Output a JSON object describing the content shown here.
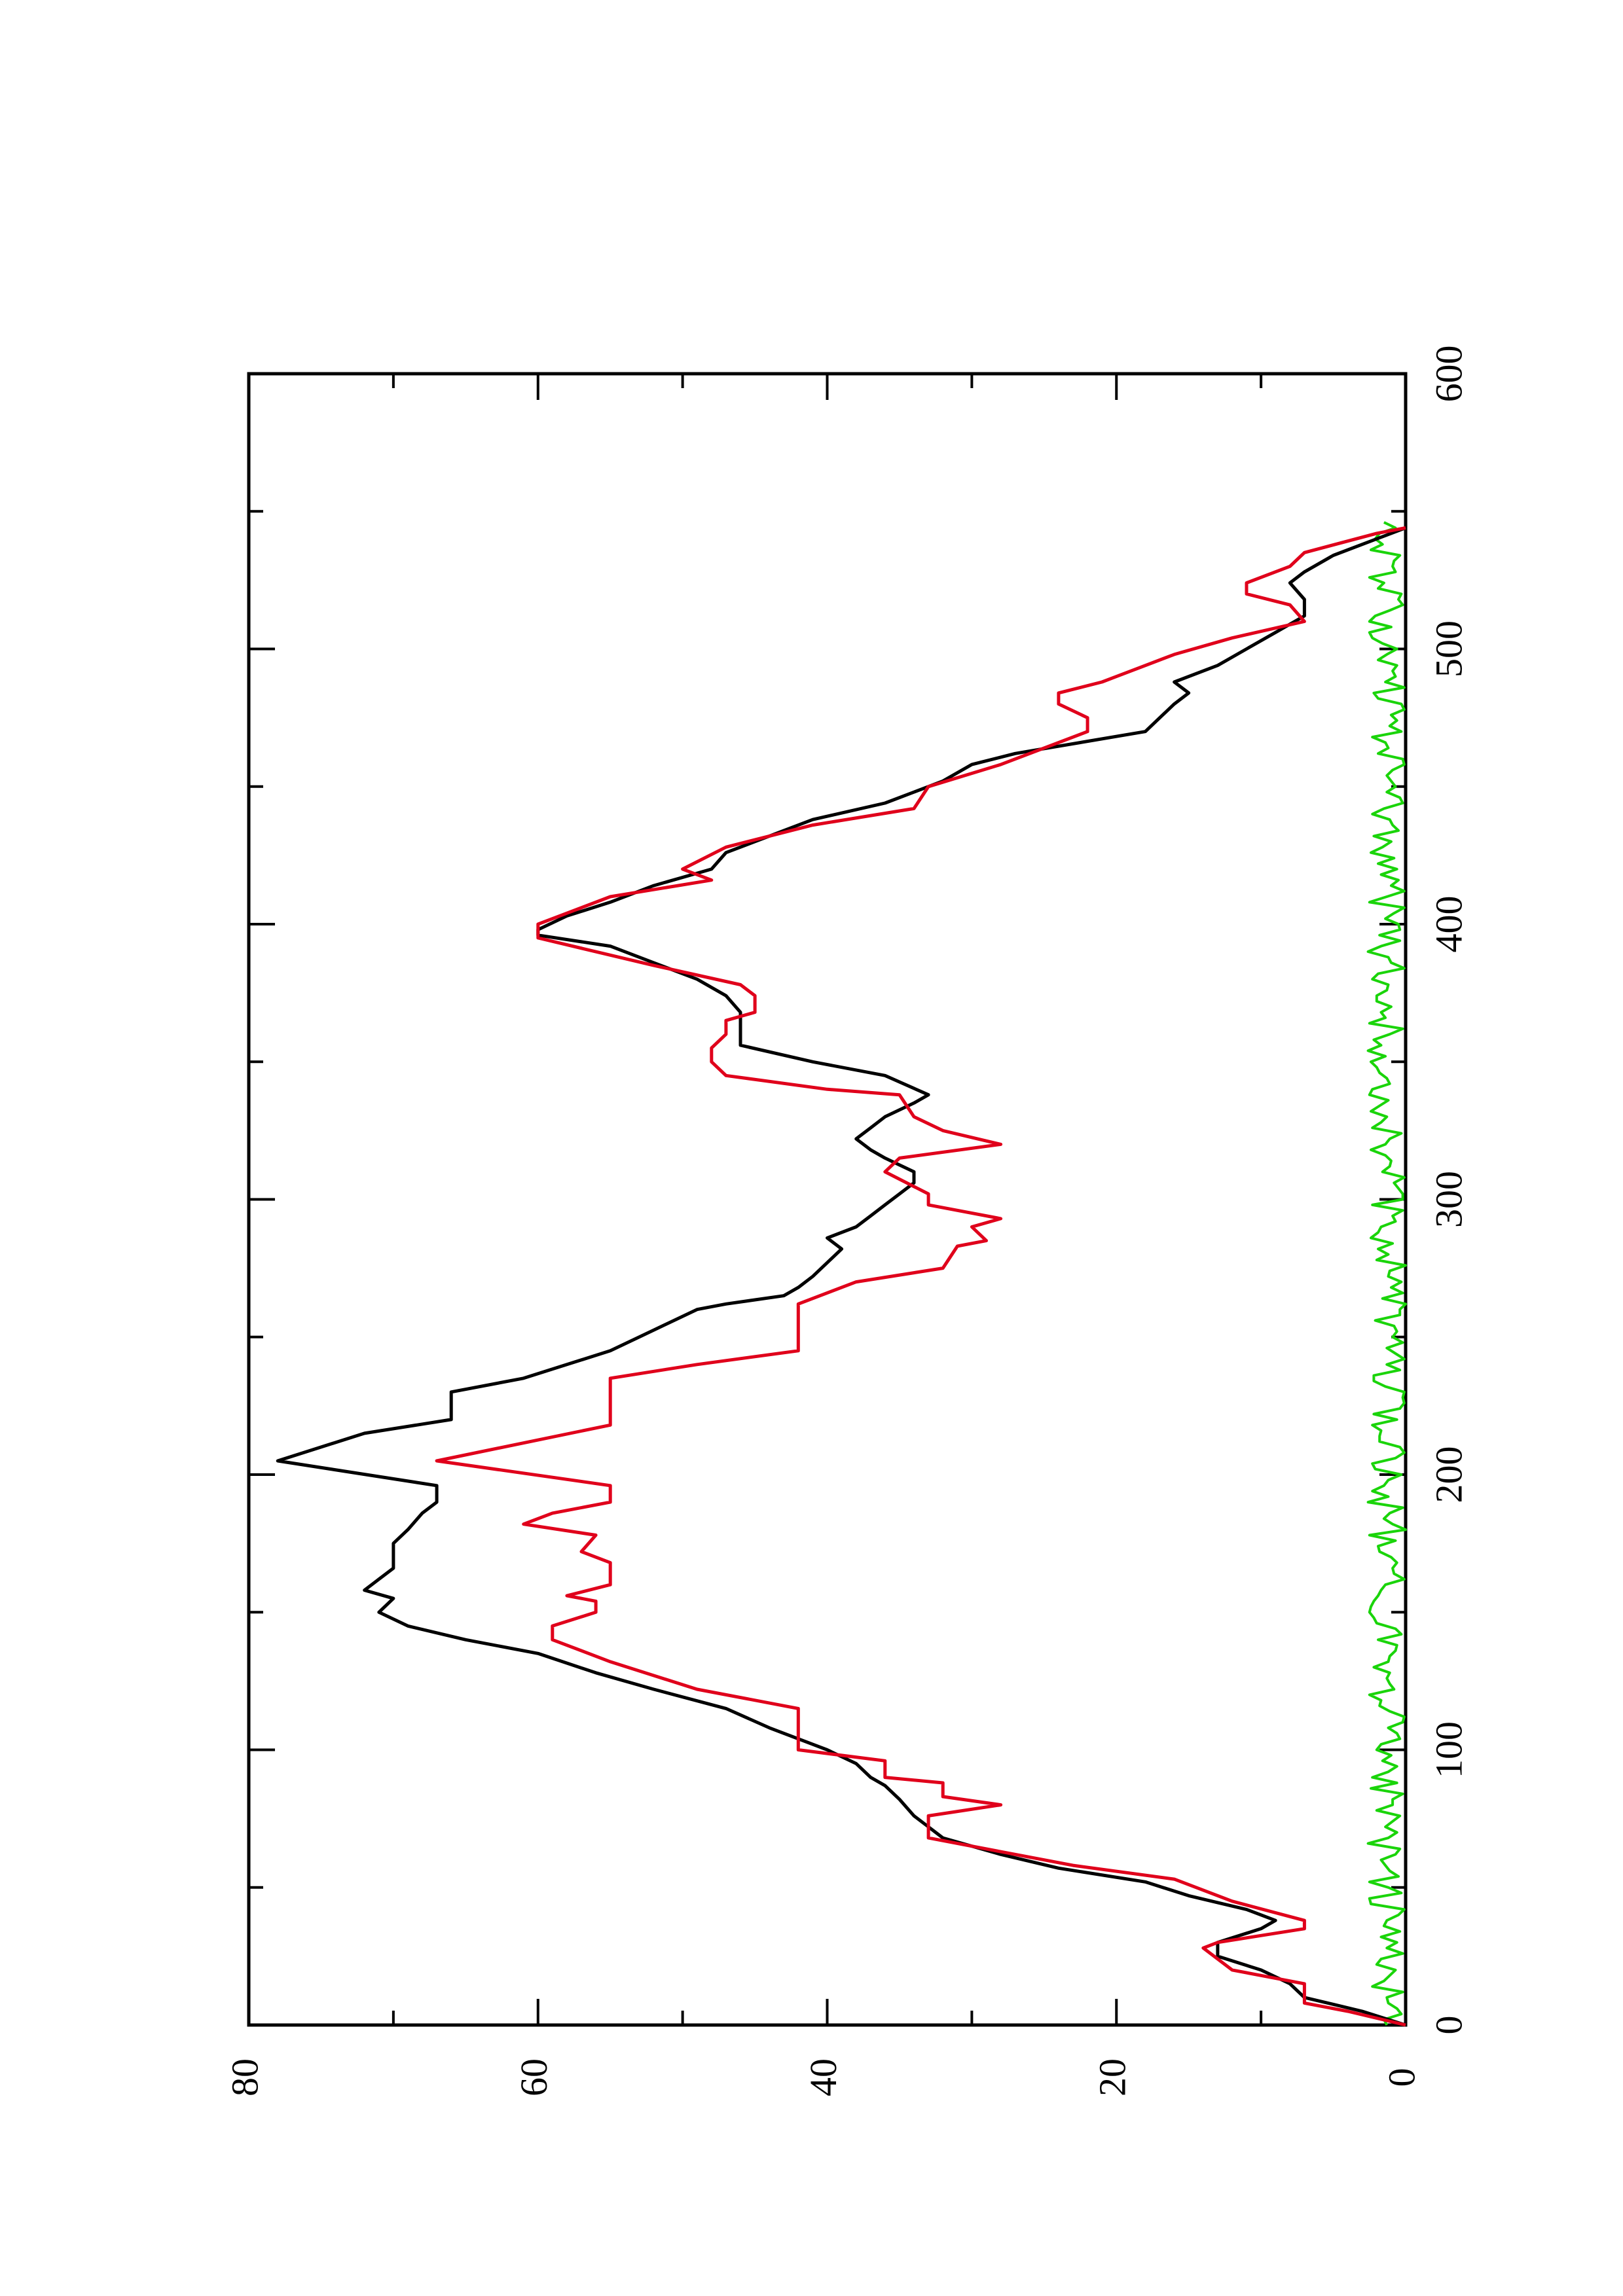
{
  "chart_data": {
    "type": "line",
    "orientation": "rotated-90-ccw",
    "title": "",
    "xlabel": "",
    "ylabel": "",
    "xlim": [
      0,
      600
    ],
    "ylim": [
      0,
      80
    ],
    "grid": false,
    "legend": "none",
    "x_ticks": [
      0,
      100,
      200,
      300,
      400,
      500,
      600
    ],
    "x_tick_labels": [
      "0",
      "100",
      "200",
      "300",
      "400",
      "500",
      "600"
    ],
    "x_minor_ticks": [
      50,
      150,
      250,
      350,
      450,
      550
    ],
    "y_ticks": [
      0,
      20,
      40,
      60,
      80
    ],
    "y_tick_labels": [
      "0",
      "20",
      "40",
      "60",
      "80"
    ],
    "y_minor_ticks": [
      10,
      30,
      50,
      70
    ],
    "series": [
      {
        "color": "#000000",
        "points": [
          [
            0,
            0
          ],
          [
            5,
            3
          ],
          [
            10,
            7
          ],
          [
            15,
            8
          ],
          [
            20,
            10
          ],
          [
            25,
            13
          ],
          [
            30,
            13
          ],
          [
            35,
            10
          ],
          [
            38,
            9
          ],
          [
            42,
            11
          ],
          [
            47,
            15
          ],
          [
            52,
            18
          ],
          [
            57,
            24
          ],
          [
            62,
            28
          ],
          [
            68,
            32
          ],
          [
            72,
            33
          ],
          [
            76,
            34
          ],
          [
            82,
            35
          ],
          [
            87,
            36
          ],
          [
            90,
            37
          ],
          [
            95,
            38
          ],
          [
            100,
            40
          ],
          [
            108,
            44
          ],
          [
            115,
            47
          ],
          [
            122,
            52
          ],
          [
            128,
            56
          ],
          [
            135,
            60
          ],
          [
            140,
            65
          ],
          [
            145,
            69
          ],
          [
            150,
            71
          ],
          [
            155,
            70
          ],
          [
            158,
            72
          ],
          [
            162,
            71
          ],
          [
            166,
            70
          ],
          [
            170,
            70
          ],
          [
            175,
            70
          ],
          [
            180,
            69
          ],
          [
            186,
            68
          ],
          [
            190,
            67
          ],
          [
            196,
            67
          ],
          [
            205,
            78
          ],
          [
            215,
            72
          ],
          [
            220,
            66
          ],
          [
            225,
            66
          ],
          [
            230,
            66
          ],
          [
            235,
            61
          ],
          [
            240,
            58
          ],
          [
            245,
            55
          ],
          [
            250,
            53
          ],
          [
            255,
            51
          ],
          [
            260,
            49
          ],
          [
            262,
            47
          ],
          [
            265,
            43
          ],
          [
            268,
            42
          ],
          [
            272,
            41
          ],
          [
            277,
            40
          ],
          [
            282,
            39
          ],
          [
            286,
            40
          ],
          [
            290,
            38
          ],
          [
            294,
            37
          ],
          [
            298,
            36
          ],
          [
            302,
            35
          ],
          [
            306,
            34
          ],
          [
            310,
            34
          ],
          [
            315,
            36
          ],
          [
            318,
            37
          ],
          [
            322,
            38
          ],
          [
            326,
            37
          ],
          [
            330,
            36
          ],
          [
            335,
            34
          ],
          [
            338,
            33
          ],
          [
            345,
            36
          ],
          [
            350,
            41
          ],
          [
            356,
            46
          ],
          [
            362,
            46
          ],
          [
            368,
            46
          ],
          [
            374,
            47
          ],
          [
            380,
            49
          ],
          [
            386,
            52
          ],
          [
            392,
            55
          ],
          [
            396,
            60
          ],
          [
            398,
            60
          ],
          [
            403,
            58
          ],
          [
            408,
            55
          ],
          [
            414,
            52
          ],
          [
            420,
            48
          ],
          [
            426,
            47
          ],
          [
            432,
            44
          ],
          [
            438,
            41
          ],
          [
            444,
            36
          ],
          [
            448,
            34
          ],
          [
            452,
            32
          ],
          [
            458,
            30
          ],
          [
            462,
            27
          ],
          [
            470,
            18
          ],
          [
            475,
            17
          ],
          [
            480,
            16
          ],
          [
            484,
            15
          ],
          [
            488,
            16
          ],
          [
            494,
            13
          ],
          [
            500,
            11
          ],
          [
            506,
            9
          ],
          [
            512,
            7
          ],
          [
            518,
            7
          ],
          [
            524,
            8
          ],
          [
            528,
            7
          ],
          [
            534,
            5
          ],
          [
            540,
            2
          ],
          [
            544,
            0
          ]
        ]
      },
      {
        "color": "#e0001b",
        "points": [
          [
            0,
            0
          ],
          [
            5,
            4
          ],
          [
            8,
            7
          ],
          [
            15,
            7
          ],
          [
            18,
            10
          ],
          [
            20,
            12
          ],
          [
            28,
            14
          ],
          [
            30,
            13
          ],
          [
            35,
            7
          ],
          [
            38,
            7
          ],
          [
            45,
            12
          ],
          [
            53,
            16
          ],
          [
            58,
            23
          ],
          [
            68,
            33
          ],
          [
            72,
            33
          ],
          [
            76,
            33
          ],
          [
            80,
            28
          ],
          [
            83,
            32
          ],
          [
            88,
            32
          ],
          [
            90,
            36
          ],
          [
            96,
            36
          ],
          [
            100,
            42
          ],
          [
            115,
            42
          ],
          [
            122,
            49
          ],
          [
            132,
            55
          ],
          [
            140,
            59
          ],
          [
            145,
            59
          ],
          [
            150,
            56
          ],
          [
            154,
            56
          ],
          [
            156,
            58
          ],
          [
            160,
            55
          ],
          [
            168,
            55
          ],
          [
            172,
            57
          ],
          [
            178,
            56
          ],
          [
            182,
            61
          ],
          [
            186,
            59
          ],
          [
            190,
            55
          ],
          [
            196,
            55
          ],
          [
            205,
            67
          ],
          [
            218,
            55
          ],
          [
            235,
            55
          ],
          [
            240,
            49
          ],
          [
            245,
            42
          ],
          [
            262,
            42
          ],
          [
            270,
            38
          ],
          [
            275,
            32
          ],
          [
            283,
            31
          ],
          [
            285,
            29
          ],
          [
            290,
            30
          ],
          [
            293,
            28
          ],
          [
            298,
            33
          ],
          [
            302,
            33
          ],
          [
            310,
            36
          ],
          [
            315,
            35
          ],
          [
            320,
            28
          ],
          [
            325,
            32
          ],
          [
            330,
            34
          ],
          [
            338,
            35
          ],
          [
            340,
            40
          ],
          [
            345,
            47
          ],
          [
            350,
            48
          ],
          [
            355,
            48
          ],
          [
            360,
            47
          ],
          [
            365,
            47
          ],
          [
            368,
            45
          ],
          [
            374,
            45
          ],
          [
            378,
            46
          ],
          [
            385,
            52
          ],
          [
            395,
            60
          ],
          [
            400,
            60
          ],
          [
            410,
            55
          ],
          [
            416,
            48
          ],
          [
            420,
            50
          ],
          [
            428,
            47
          ],
          [
            436,
            41
          ],
          [
            442,
            34
          ],
          [
            450,
            33
          ],
          [
            458,
            28
          ],
          [
            470,
            22
          ],
          [
            475,
            22
          ],
          [
            480,
            24
          ],
          [
            484,
            24
          ],
          [
            488,
            21
          ],
          [
            490,
            20
          ],
          [
            498,
            16
          ],
          [
            504,
            12
          ],
          [
            510,
            7
          ],
          [
            516,
            8
          ],
          [
            520,
            11
          ],
          [
            524,
            11
          ],
          [
            530,
            8
          ],
          [
            535,
            7
          ],
          [
            542,
            2
          ],
          [
            544,
            0
          ]
        ]
      },
      {
        "color": "#1ad40a",
        "points": []
      }
    ]
  }
}
